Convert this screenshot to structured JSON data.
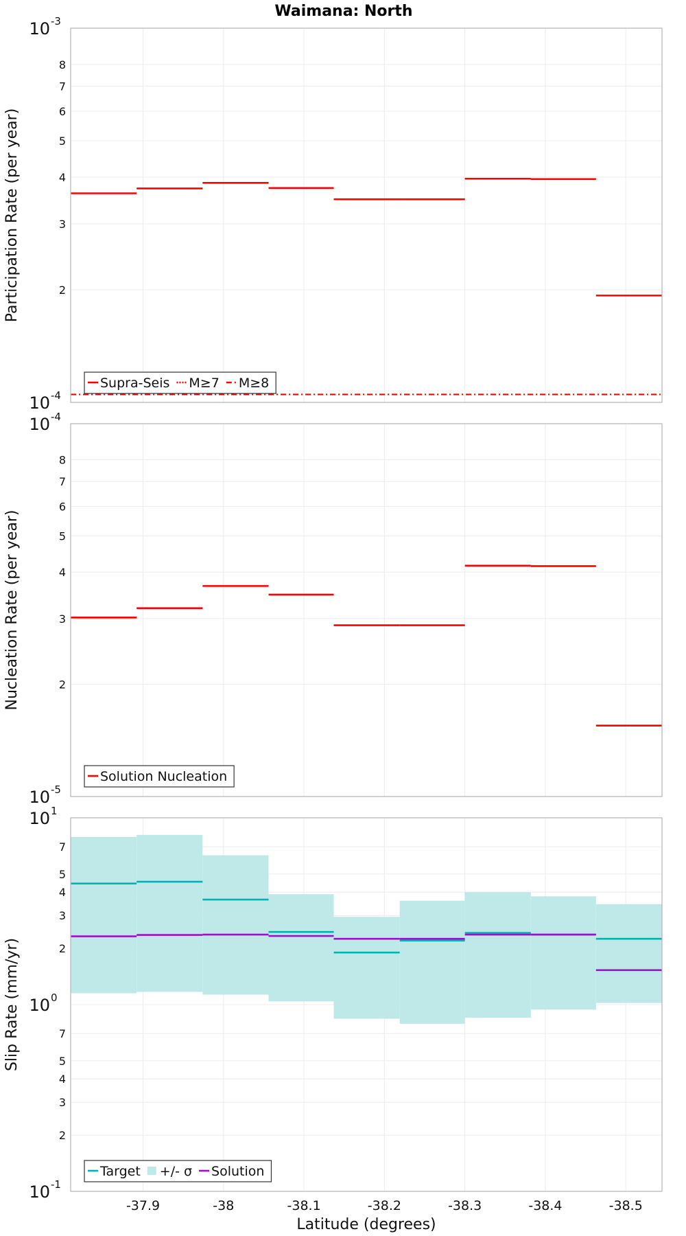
{
  "colors": {
    "supra": "#ff0000",
    "target": "#00b3b3",
    "sigma": "#bfe9e9",
    "solution": "#a00fc8",
    "grid": "#ececec",
    "frame": "#b4b4b4"
  },
  "chart_data": [
    {
      "type": "line",
      "title": "Waimana: North",
      "ylabel": "Participation Rate (per year)",
      "yscale": "log",
      "ylim": [
        0.0001,
        0.001
      ],
      "xlim": [
        -37.81,
        -38.545
      ],
      "yticks": {
        "major": [
          {
            "value": 0.001,
            "base": "10",
            "exp": "-3"
          },
          {
            "value": 0.0001,
            "base": "10",
            "exp": "-4"
          }
        ],
        "minor": [
          {
            "value": 0.0008,
            "label": "8"
          },
          {
            "value": 0.0007,
            "label": "7"
          },
          {
            "value": 0.0006,
            "label": "6"
          },
          {
            "value": 0.0005,
            "label": "5"
          },
          {
            "value": 0.0004,
            "label": "4"
          },
          {
            "value": 0.0003,
            "label": "3"
          },
          {
            "value": 0.0002,
            "label": "2"
          }
        ]
      },
      "legend": [
        {
          "label": "Supra-Seis",
          "style": "solid",
          "color": "#ff0000"
        },
        {
          "label": "M≥7",
          "style": "dotted",
          "color": "#ff0000"
        },
        {
          "label": "M≥8",
          "style": "dashdot",
          "color": "#ff0000"
        }
      ],
      "series": [
        {
          "name": "Supra-Seis",
          "style": "solid",
          "color": "#ff0000",
          "steps": [
            {
              "x0": -37.81,
              "x1": -37.892,
              "y": 0.000362
            },
            {
              "x0": -37.892,
              "x1": -37.974,
              "y": 0.000373
            },
            {
              "x0": -37.974,
              "x1": -38.056,
              "y": 0.000386
            },
            {
              "x0": -38.056,
              "x1": -38.137,
              "y": 0.000374
            },
            {
              "x0": -38.137,
              "x1": -38.219,
              "y": 0.000349
            },
            {
              "x0": -38.219,
              "x1": -38.3,
              "y": 0.000349
            },
            {
              "x0": -38.3,
              "x1": -38.382,
              "y": 0.000396
            },
            {
              "x0": -38.382,
              "x1": -38.463,
              "y": 0.000395
            },
            {
              "x0": -38.463,
              "x1": -38.545,
              "y": 0.000193
            }
          ]
        },
        {
          "name": "M≥7",
          "style": "dotted",
          "color": "#ff0000",
          "steps": [
            {
              "x0": -38.137,
              "x1": -38.219,
              "y": 0.000349
            },
            {
              "x0": -38.219,
              "x1": -38.3,
              "y": 0.000349
            },
            {
              "x0": -38.3,
              "x1": -38.382,
              "y": 0.000396
            },
            {
              "x0": -38.382,
              "x1": -38.463,
              "y": 0.000395
            }
          ]
        },
        {
          "name": "M≥8",
          "style": "dashdot",
          "color": "#ff0000",
          "steps": [
            {
              "x0": -37.81,
              "x1": -38.545,
              "y": 0.000105
            }
          ]
        }
      ]
    },
    {
      "type": "line",
      "title": "",
      "ylabel": "Nucleation Rate (per year)",
      "yscale": "log",
      "ylim": [
        1e-05,
        0.0001
      ],
      "xlim": [
        -37.81,
        -38.545
      ],
      "yticks": {
        "major": [
          {
            "value": 0.0001,
            "base": "10",
            "exp": "-4"
          },
          {
            "value": 1e-05,
            "base": "10",
            "exp": "-5"
          }
        ],
        "minor": [
          {
            "value": 8e-05,
            "label": "8"
          },
          {
            "value": 7e-05,
            "label": "7"
          },
          {
            "value": 6e-05,
            "label": "6"
          },
          {
            "value": 5e-05,
            "label": "5"
          },
          {
            "value": 4e-05,
            "label": "4"
          },
          {
            "value": 3e-05,
            "label": "3"
          },
          {
            "value": 2e-05,
            "label": "2"
          }
        ]
      },
      "legend": [
        {
          "label": "Solution Nucleation",
          "style": "solid",
          "color": "#ff0000"
        }
      ],
      "series": [
        {
          "name": "Solution Nucleation",
          "style": "solid",
          "color": "#ff0000",
          "steps": [
            {
              "x0": -37.81,
              "x1": -37.892,
              "y": 3.02e-05
            },
            {
              "x0": -37.892,
              "x1": -37.974,
              "y": 3.2e-05
            },
            {
              "x0": -37.974,
              "x1": -38.056,
              "y": 3.67e-05
            },
            {
              "x0": -38.056,
              "x1": -38.137,
              "y": 3.48e-05
            },
            {
              "x0": -38.137,
              "x1": -38.219,
              "y": 2.88e-05
            },
            {
              "x0": -38.219,
              "x1": -38.3,
              "y": 2.88e-05
            },
            {
              "x0": -38.3,
              "x1": -38.382,
              "y": 4.16e-05
            },
            {
              "x0": -38.382,
              "x1": -38.463,
              "y": 4.15e-05
            },
            {
              "x0": -38.463,
              "x1": -38.545,
              "y": 1.55e-05
            }
          ]
        }
      ]
    },
    {
      "type": "line",
      "title": "",
      "ylabel": "Slip Rate (mm/yr)",
      "xlabel": "Latitude (degrees)",
      "yscale": "log",
      "ylim": [
        0.1,
        10
      ],
      "xlim": [
        -37.81,
        -38.545
      ],
      "xticks": [
        {
          "value": -37.9,
          "label": "-37.9"
        },
        {
          "value": -38.0,
          "label": "-38"
        },
        {
          "value": -38.1,
          "label": "-38.1"
        },
        {
          "value": -38.2,
          "label": "-38.2"
        },
        {
          "value": -38.3,
          "label": "-38.3"
        },
        {
          "value": -38.4,
          "label": "-38.4"
        },
        {
          "value": -38.5,
          "label": "-38.5"
        }
      ],
      "yticks": {
        "major": [
          {
            "value": 10,
            "base": "10",
            "exp": "1"
          },
          {
            "value": 1,
            "base": "10",
            "exp": "0"
          },
          {
            "value": 0.1,
            "base": "10",
            "exp": "-1"
          }
        ],
        "minor": [
          {
            "value": 7,
            "label": "7"
          },
          {
            "value": 5,
            "label": "5"
          },
          {
            "value": 4,
            "label": "4"
          },
          {
            "value": 3,
            "label": "3"
          },
          {
            "value": 2,
            "label": "2"
          },
          {
            "value": 0.7,
            "label": "7"
          },
          {
            "value": 0.5,
            "label": "5"
          },
          {
            "value": 0.4,
            "label": "4"
          },
          {
            "value": 0.3,
            "label": "3"
          },
          {
            "value": 0.2,
            "label": "2"
          }
        ]
      },
      "legend": [
        {
          "label": "Target",
          "style": "solid",
          "color": "#00b3b3"
        },
        {
          "label": "+/- σ",
          "style": "fill",
          "color": "#bfe9e9"
        },
        {
          "label": "Solution",
          "style": "solid",
          "color": "#a00fc8"
        }
      ],
      "sigma_bands": [
        {
          "x0": -37.81,
          "x1": -37.892,
          "lo": 1.15,
          "hi": 7.9
        },
        {
          "x0": -37.892,
          "x1": -37.974,
          "lo": 1.17,
          "hi": 8.1
        },
        {
          "x0": -37.974,
          "x1": -38.056,
          "lo": 1.13,
          "hi": 6.3
        },
        {
          "x0": -38.056,
          "x1": -38.137,
          "lo": 1.04,
          "hi": 3.9
        },
        {
          "x0": -38.137,
          "x1": -38.219,
          "lo": 0.84,
          "hi": 2.95
        },
        {
          "x0": -38.219,
          "x1": -38.3,
          "lo": 0.79,
          "hi": 3.6
        },
        {
          "x0": -38.3,
          "x1": -38.382,
          "lo": 0.85,
          "hi": 4.0
        },
        {
          "x0": -38.382,
          "x1": -38.463,
          "lo": 0.94,
          "hi": 3.8
        },
        {
          "x0": -38.463,
          "x1": -38.545,
          "lo": 1.02,
          "hi": 3.45
        }
      ],
      "series": [
        {
          "name": "Target",
          "style": "solid",
          "color": "#00b3b3",
          "steps": [
            {
              "x0": -37.81,
              "x1": -37.892,
              "y": 4.45
            },
            {
              "x0": -37.892,
              "x1": -37.974,
              "y": 4.55
            },
            {
              "x0": -37.974,
              "x1": -38.056,
              "y": 3.65
            },
            {
              "x0": -38.056,
              "x1": -38.137,
              "y": 2.45
            },
            {
              "x0": -38.137,
              "x1": -38.219,
              "y": 1.9
            },
            {
              "x0": -38.219,
              "x1": -38.3,
              "y": 2.2
            },
            {
              "x0": -38.3,
              "x1": -38.382,
              "y": 2.42
            },
            {
              "x0": -38.382,
              "x1": -38.463,
              "y": 2.37
            },
            {
              "x0": -38.463,
              "x1": -38.545,
              "y": 2.25
            }
          ]
        },
        {
          "name": "Solution",
          "style": "solid",
          "color": "#a00fc8",
          "steps": [
            {
              "x0": -37.81,
              "x1": -37.892,
              "y": 2.32
            },
            {
              "x0": -37.892,
              "x1": -37.974,
              "y": 2.36
            },
            {
              "x0": -37.974,
              "x1": -38.056,
              "y": 2.37
            },
            {
              "x0": -38.056,
              "x1": -38.137,
              "y": 2.33
            },
            {
              "x0": -38.137,
              "x1": -38.219,
              "y": 2.25
            },
            {
              "x0": -38.219,
              "x1": -38.3,
              "y": 2.25
            },
            {
              "x0": -38.3,
              "x1": -38.382,
              "y": 2.37
            },
            {
              "x0": -38.382,
              "x1": -38.463,
              "y": 2.37
            },
            {
              "x0": -38.463,
              "x1": -38.545,
              "y": 1.53
            }
          ]
        }
      ]
    }
  ]
}
